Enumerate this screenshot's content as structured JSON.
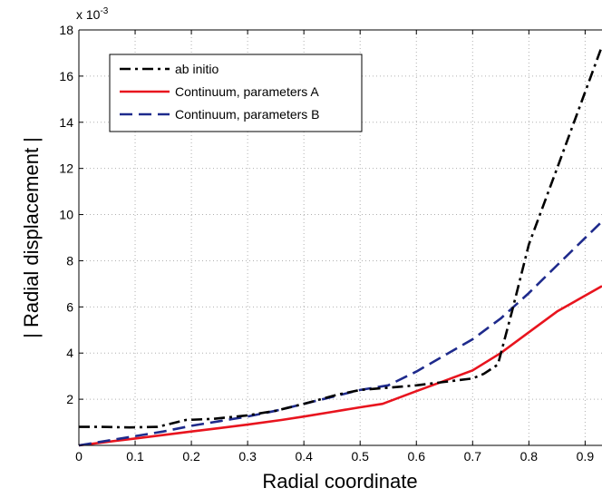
{
  "chart_data": {
    "type": "line",
    "title": "",
    "xlabel": "Radial coordinate",
    "ylabel": "| Radial displacement |",
    "y_multiplier_label": "x 10",
    "y_multiplier_exponent": "-3",
    "xlim": [
      0,
      0.93
    ],
    "ylim": [
      0,
      18
    ],
    "x_ticks": [
      0,
      0.1,
      0.2,
      0.3,
      0.4,
      0.5,
      0.6,
      0.7,
      0.8,
      0.9
    ],
    "x_tick_labels": [
      "0",
      "0.1",
      "0.2",
      "0.3",
      "0.4",
      "0.5",
      "0.6",
      "0.7",
      "0.8",
      "0.9"
    ],
    "y_ticks": [
      2,
      4,
      6,
      8,
      10,
      12,
      14,
      16,
      18
    ],
    "y_tick_labels": [
      "2",
      "4",
      "6",
      "8",
      "10",
      "12",
      "14",
      "16",
      "18"
    ],
    "grid": true,
    "legend_position": "top-left",
    "series": [
      {
        "name": "ab initio",
        "color": "#000000",
        "style": "dashdot",
        "x": [
          0,
          0.04,
          0.09,
          0.14,
          0.19,
          0.24,
          0.3,
          0.35,
          0.4,
          0.46,
          0.5,
          0.55,
          0.6,
          0.65,
          0.7,
          0.72,
          0.745,
          0.77,
          0.8,
          0.85,
          0.93
        ],
        "y": [
          0.8,
          0.8,
          0.78,
          0.8,
          1.1,
          1.15,
          1.3,
          1.5,
          1.8,
          2.2,
          2.4,
          2.5,
          2.6,
          2.75,
          2.9,
          3.1,
          3.5,
          5.8,
          8.7,
          12.0,
          17.3
        ]
      },
      {
        "name": "Continuum, parameters A",
        "color": "#e8141e",
        "style": "solid",
        "x": [
          0,
          0.05,
          0.1,
          0.15,
          0.2,
          0.25,
          0.3,
          0.36,
          0.4,
          0.45,
          0.5,
          0.54,
          0.6,
          0.65,
          0.7,
          0.75,
          0.8,
          0.85,
          0.93
        ],
        "y": [
          0,
          0.15,
          0.3,
          0.45,
          0.6,
          0.75,
          0.9,
          1.1,
          1.25,
          1.45,
          1.65,
          1.8,
          2.35,
          2.8,
          3.25,
          4.0,
          4.9,
          5.8,
          6.9
        ]
      },
      {
        "name": "Continuum, parameters B",
        "color": "#1e2a8c",
        "style": "dashed",
        "x": [
          0,
          0.05,
          0.1,
          0.15,
          0.2,
          0.25,
          0.3,
          0.35,
          0.4,
          0.45,
          0.5,
          0.55,
          0.6,
          0.65,
          0.7,
          0.75,
          0.8,
          0.85,
          0.93
        ],
        "y": [
          0,
          0.2,
          0.4,
          0.6,
          0.85,
          1.05,
          1.25,
          1.5,
          1.8,
          2.1,
          2.4,
          2.6,
          3.2,
          3.9,
          4.6,
          5.5,
          6.6,
          7.8,
          9.7
        ]
      }
    ]
  }
}
